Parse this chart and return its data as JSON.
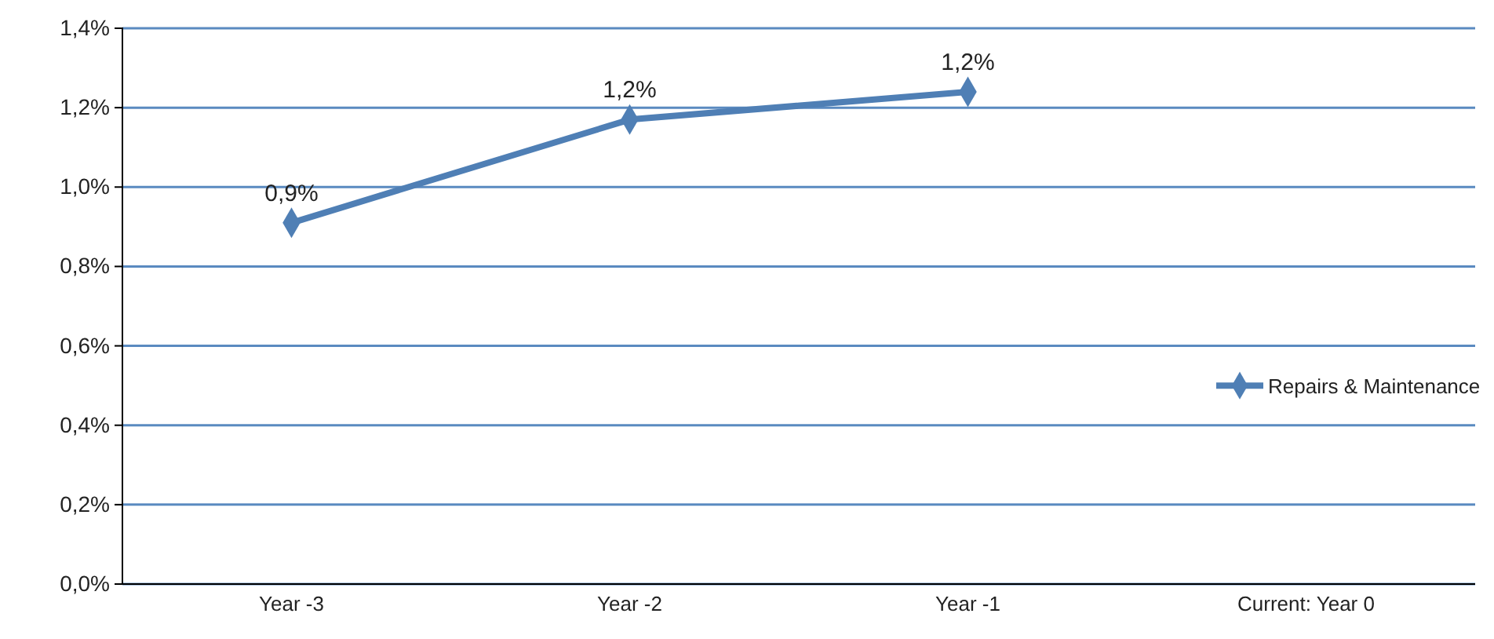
{
  "chart_data": {
    "type": "line",
    "categories": [
      "Year -3",
      "Year -2",
      "Year -1",
      "Current: Year 0"
    ],
    "series": [
      {
        "name": "Repairs & Maintenance",
        "color": "#4f7fb5",
        "values": [
          0.91,
          1.17,
          1.24,
          null
        ],
        "value_labels": [
          "0,9%",
          "1,2%",
          "1,2%",
          null
        ]
      }
    ],
    "ylim": [
      0,
      1.4
    ],
    "yticks": [
      {
        "value": 0,
        "label": "0,0%"
      },
      {
        "value": 0.2,
        "label": "0,2%"
      },
      {
        "value": 0.4,
        "label": "0,4%"
      },
      {
        "value": 0.6,
        "label": "0,6%"
      },
      {
        "value": 0.8,
        "label": "0,8%"
      },
      {
        "value": 1.0,
        "label": "1,0%"
      },
      {
        "value": 1.2,
        "label": "1,2%"
      },
      {
        "value": 1.4,
        "label": "1,4%"
      }
    ],
    "grid": "y",
    "legend": "right",
    "marker": "diamond",
    "line_style": "solid"
  }
}
